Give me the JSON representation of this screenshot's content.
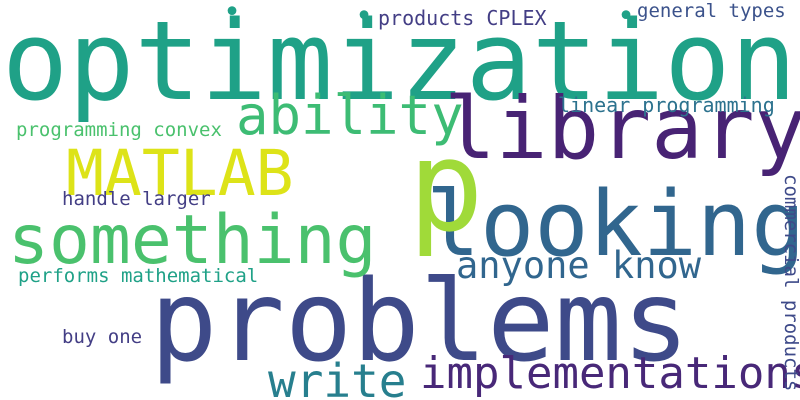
{
  "words": {
    "optimization": "optimization",
    "problems": "problems",
    "library": "library",
    "looking": "looking",
    "something": "something",
    "matlab": "MATLAB",
    "ability": "ability",
    "p": "p",
    "anyone_know": "anyone know",
    "write": "write",
    "implementations": "implementations",
    "products_cplex": "products CPLEX",
    "general_types": "general types",
    "linear_programming": "linear programming",
    "programming_convex": "programming convex",
    "handle_larger": "handle larger",
    "performs_mathematical": "performs mathematical",
    "buy_one": "buy one",
    "commercial_products": "commercial products",
    "dot_1": "•",
    "dot_2": "•",
    "dot_3": "•"
  },
  "colors": {
    "background": "#ffffff",
    "palette": [
      "#482374",
      "#482878",
      "#433e85",
      "#3e4a89",
      "#3b528b",
      "#31668e",
      "#2c728e",
      "#277f8e",
      "#1fa187",
      "#3dbc74",
      "#4ac16d",
      "#a0da39",
      "#dde318"
    ]
  }
}
